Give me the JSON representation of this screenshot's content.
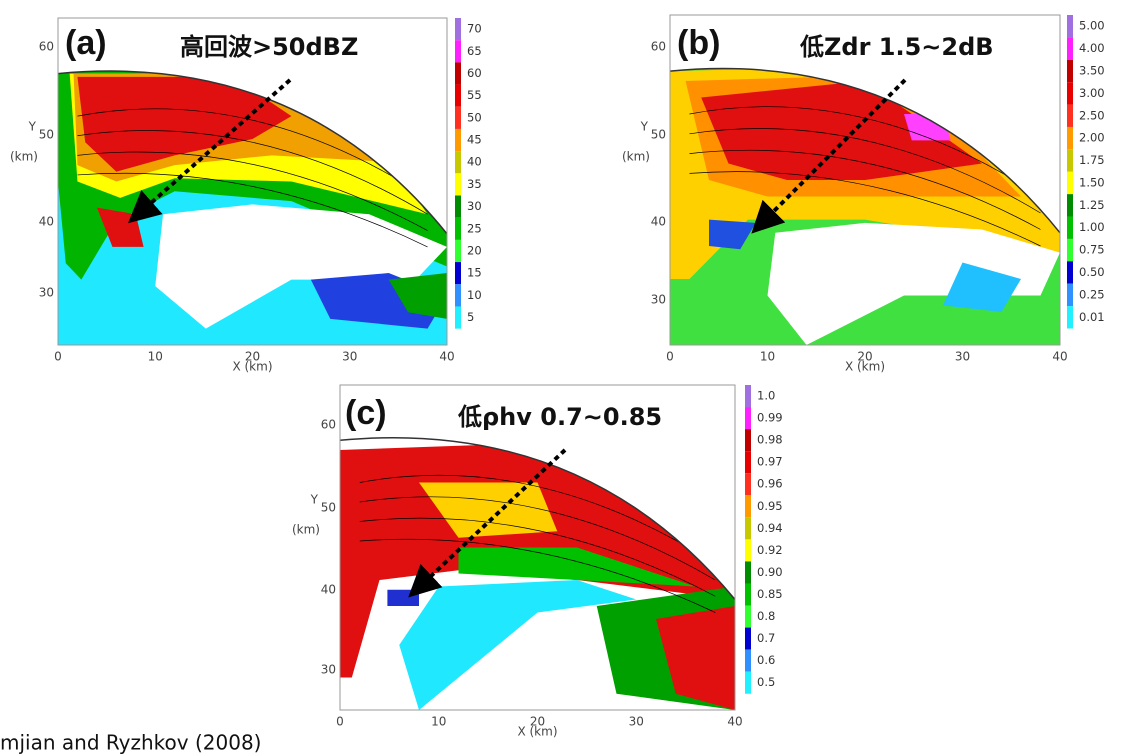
{
  "panels": [
    {
      "label": "(a)",
      "annotation": "高回波>50dBZ",
      "y_axis": "Y",
      "y_unit": "(km)",
      "x_axis": "X (km)",
      "xticks": [
        "0",
        "10",
        "20",
        "30",
        "40"
      ],
      "yticks": [
        "60",
        "50",
        "40",
        "30"
      ],
      "colorbar": [
        "70",
        "65",
        "60",
        "55",
        "50",
        "45",
        "40",
        "35",
        "30",
        "25",
        "20",
        "15",
        "10",
        "5"
      ]
    },
    {
      "label": "(b)",
      "annotation": "低Zdr 1.5~2dB",
      "y_axis": "Y",
      "y_unit": "(km)",
      "x_axis": "X (km)",
      "xticks": [
        "0",
        "10",
        "20",
        "30",
        "40"
      ],
      "yticks": [
        "60",
        "50",
        "40",
        "30"
      ],
      "colorbar": [
        "5.00",
        "4.00",
        "3.50",
        "3.00",
        "2.50",
        "2.00",
        "1.75",
        "1.50",
        "1.25",
        "1.00",
        "0.75",
        "0.50",
        "0.25",
        "0.01"
      ]
    },
    {
      "label": "(c)",
      "annotation": "低ρhv 0.7~0.85",
      "y_axis": "Y",
      "y_unit": "(km)",
      "x_axis": "X (km)",
      "xticks": [
        "0",
        "10",
        "20",
        "30",
        "40"
      ],
      "yticks": [
        "60",
        "50",
        "40",
        "30"
      ],
      "colorbar": [
        "1.0",
        "0.99",
        "0.98",
        "0.97",
        "0.96",
        "0.95",
        "0.94",
        "0.92",
        "0.90",
        "0.85",
        "0.8",
        "0.7",
        "0.6",
        "0.5"
      ]
    }
  ],
  "citation": "mjian and Ryzhkov (2008)"
}
